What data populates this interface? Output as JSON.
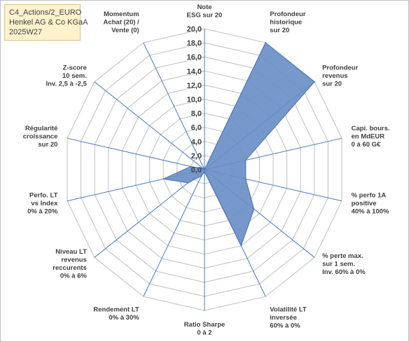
{
  "title_box": {
    "line1": "C4_Actions/2_EURO",
    "line2": "Henkel AG & Co KGaA",
    "line3": "2025W27"
  },
  "colors": {
    "fill": "#6a8fc6",
    "stroke": "#4a72b0",
    "grid": "#bfbfbf",
    "spoke": "#4a78c2",
    "title_bg": "#fff2cc"
  },
  "chart_data": {
    "type": "radar",
    "title": "",
    "rmin": 0,
    "rmax": 20,
    "tick_labels": [
      "0,0",
      "2,0",
      "4,0",
      "6,0",
      "8,0",
      "10,0",
      "12,0",
      "14,0",
      "16,0",
      "18,0",
      "20,0"
    ],
    "axes": [
      [
        "Note",
        "ESG sur 20"
      ],
      [
        "Profondeur",
        "historique",
        "sur 20"
      ],
      [
        "Profondeur",
        "revenus",
        "sur 20"
      ],
      [
        "Capi. bours.",
        "en MdEUR",
        "0 à 60 G€"
      ],
      [
        "% perfo 1A",
        "positive",
        "40% à 100%"
      ],
      [
        "% perte max.",
        "sur 1 sem.",
        "Inv. 60% à 0%"
      ],
      [
        "Volatilité LT",
        "inversée",
        "60% à 0%"
      ],
      [
        "Ratio Sharpe",
        "0 à 2"
      ],
      [
        "Rendement LT",
        "0% à 30%"
      ],
      [
        "Niveau LT",
        "revenus",
        "reccurents",
        "0% à 6%"
      ],
      [
        "Perfo. LT",
        "vs Index",
        "0% à 20%"
      ],
      [
        "Régularité",
        "croissance",
        "sur 20"
      ],
      [
        "Z-score",
        "10 sem.",
        "Inv. 2,5 à -2,5"
      ],
      [
        "Momentum",
        "Achat (20) /",
        "Vente (0)"
      ]
    ],
    "series": [
      {
        "values": [
          0,
          20,
          20,
          6,
          6,
          9,
          12,
          0.3,
          1,
          3,
          6,
          2,
          0.3,
          0.1
        ]
      }
    ]
  }
}
